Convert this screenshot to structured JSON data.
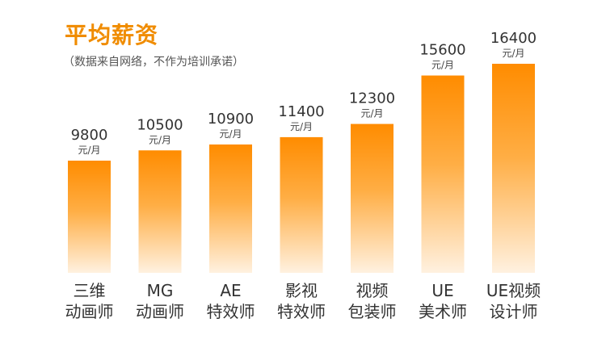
{
  "chart_data": {
    "type": "bar",
    "title": "平均薪资",
    "subtitle": "（数据来自网络，不作为培训承诺）",
    "unit": "元/月",
    "categories": [
      [
        "三维",
        "动画师"
      ],
      [
        "MG",
        "动画师"
      ],
      [
        "AE",
        "特效师"
      ],
      [
        "影视",
        "特效师"
      ],
      [
        "视频",
        "包装师"
      ],
      [
        "UE",
        "美术师"
      ],
      [
        "UE视频",
        "设计师"
      ]
    ],
    "values": [
      9800,
      10500,
      10900,
      11400,
      12300,
      15600,
      16400
    ],
    "value_labels": [
      "9800",
      "10500",
      "10900",
      "11400",
      "12300",
      "15600",
      "16400"
    ],
    "ylim": [
      0,
      18000
    ],
    "bar_color_top": "#ff8c00",
    "bar_color_bottom": "#fff1e0",
    "title_color": "#f08c00"
  }
}
